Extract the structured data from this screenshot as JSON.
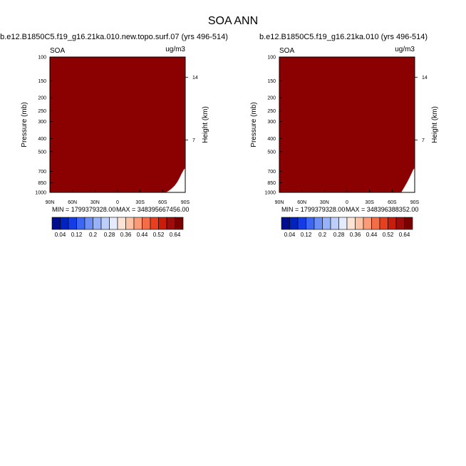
{
  "figure": {
    "title": "SOA ANN"
  },
  "colorbar": {
    "colors": [
      "#000d8f",
      "#0022bf",
      "#143ce6",
      "#3c67f5",
      "#6b8ff7",
      "#97b2f8",
      "#bdcff9",
      "#e3ebfc",
      "#fde3d3",
      "#fbc3a6",
      "#f99c77",
      "#f46d47",
      "#e8401f",
      "#c71d0a",
      "#9e0c0c",
      "#7a0000"
    ],
    "labels": [
      "0.04",
      "0.12",
      "0.2",
      "0.28",
      "0.36",
      "0.44",
      "0.52",
      "0.64"
    ]
  },
  "chart_data": [
    {
      "type": "heatmap",
      "title": "b.e12.B1850C5.f19_g16.21ka.010.new.topo.surf.07 (yrs 496-514)",
      "left_label": "SOA",
      "units": "ug/m3",
      "xlabel": "",
      "ylabel": "Pressure (mb)",
      "ylabel_right": "Height (km)",
      "x_ticks": [
        "90N",
        "60N",
        "30N",
        "0",
        "30S",
        "60S",
        "90S"
      ],
      "x_values": [
        90,
        60,
        30,
        0,
        -30,
        -60,
        -90
      ],
      "y_ticks": [
        100,
        150,
        200,
        250,
        300,
        400,
        500,
        700,
        850,
        1000
      ],
      "right_ticks": [
        {
          "label": "14",
          "pressure": 141
        },
        {
          "label": "7",
          "pressure": 410
        }
      ],
      "ylim": [
        1000,
        100
      ],
      "fill_color": "#8b0000",
      "missing_surface": [
        [
          -64,
          1000
        ],
        [
          -68,
          975
        ],
        [
          -72,
          935
        ],
        [
          -76,
          890
        ],
        [
          -79,
          845
        ],
        [
          -82,
          790
        ],
        [
          -85,
          730
        ],
        [
          -88,
          680
        ],
        [
          -90,
          660
        ]
      ],
      "min_label": "MIN = 1799379328.00",
      "max_label": "MAX = 348395667456.00"
    },
    {
      "type": "heatmap",
      "title": "b.e12.B1850C5.f19_g16.21ka.010 (yrs 496-514)",
      "left_label": "SOA",
      "units": "ug/m3",
      "xlabel": "",
      "ylabel": "Pressure (mb)",
      "ylabel_right": "Height (km)",
      "x_ticks": [
        "90N",
        "60N",
        "30N",
        "0",
        "30S",
        "60S",
        "90S"
      ],
      "x_values": [
        90,
        60,
        30,
        0,
        -30,
        -60,
        -90
      ],
      "y_ticks": [
        100,
        150,
        200,
        250,
        300,
        400,
        500,
        700,
        850,
        1000
      ],
      "right_ticks": [
        {
          "label": "14",
          "pressure": 141
        },
        {
          "label": "7",
          "pressure": 410
        }
      ],
      "ylim": [
        1000,
        100
      ],
      "fill_color": "#8b0000",
      "missing_surface": [
        [
          -72,
          1000
        ],
        [
          -74,
          960
        ],
        [
          -77,
          900
        ],
        [
          -80,
          840
        ],
        [
          -83,
          780
        ],
        [
          -86,
          720
        ],
        [
          -88,
          680
        ],
        [
          -90,
          660
        ]
      ],
      "min_label": "MIN = 1799379328.00",
      "max_label": "MAX = 348396388352.00"
    }
  ]
}
